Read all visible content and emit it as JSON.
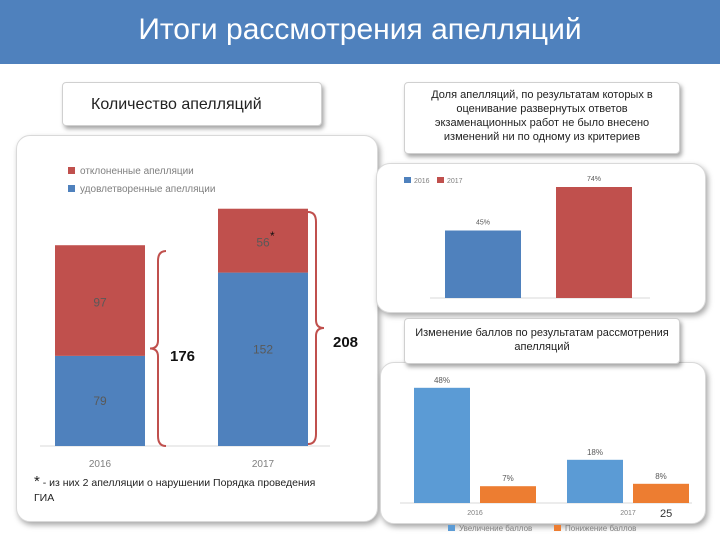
{
  "slide": {
    "title": "Итоги рассмотрения апелляций",
    "count_label": "Количество апелляций",
    "share_label": "Доля апелляций, по результатам которых в оценивание развернутых ответов экзаменационных работ не было внесено изменений ни по одному из критериев",
    "change_label": "Изменение баллов по результатам рассмотрения апелляций",
    "footnote_star": "*",
    "footnote_text": " - из них 2 апелляции о нарушении Порядка проведения ГИА",
    "total_2016": "176",
    "total_2017": "208",
    "bar_star": "*",
    "page_number": "25"
  },
  "colors": {
    "title_bg": "#4f81bd",
    "blue": "#4f81bd",
    "red": "#c0504d",
    "light_blue": "#5b9bd5",
    "orange": "#ed7d31",
    "brace": "#c0504d"
  },
  "chart_data": [
    {
      "type": "bar",
      "stacked": true,
      "title": "Количество апелляций",
      "categories": [
        "2016",
        "2017"
      ],
      "series": [
        {
          "name": "удовлетворенные апелляции",
          "values": [
            79,
            152
          ],
          "labels": [
            "79",
            "152"
          ]
        },
        {
          "name": "отклоненные апелляции",
          "values": [
            97,
            56
          ],
          "labels": [
            "97",
            "56"
          ]
        }
      ],
      "legend": [
        "отклоненные апелляции",
        "удовлетворенные апелляции"
      ],
      "ylim": [
        0,
        220
      ]
    },
    {
      "type": "bar",
      "title": "Доля апелляций, по результатам которых в оценивание развернутых ответов экзаменационных работ не было внесено изменений ни по одному из критериев",
      "categories": [
        "2016",
        "2017"
      ],
      "values": [
        45,
        74
      ],
      "labels": [
        "45%",
        "74%"
      ],
      "legend": [
        "2016",
        "2017"
      ],
      "ylim": [
        0,
        80
      ]
    },
    {
      "type": "bar",
      "title": "Изменение баллов по результатам рассмотрения апелляций",
      "categories": [
        "2016",
        "2017"
      ],
      "series": [
        {
          "name": "Увеличение баллов",
          "values": [
            48,
            18
          ],
          "labels": [
            "48%",
            "18%"
          ]
        },
        {
          "name": "Понижение баллов",
          "values": [
            7,
            8
          ],
          "labels": [
            "7%",
            "8%"
          ]
        }
      ],
      "legend": [
        "Увеличение баллов",
        "Понижение баллов"
      ],
      "ylim": [
        0,
        50
      ]
    }
  ]
}
